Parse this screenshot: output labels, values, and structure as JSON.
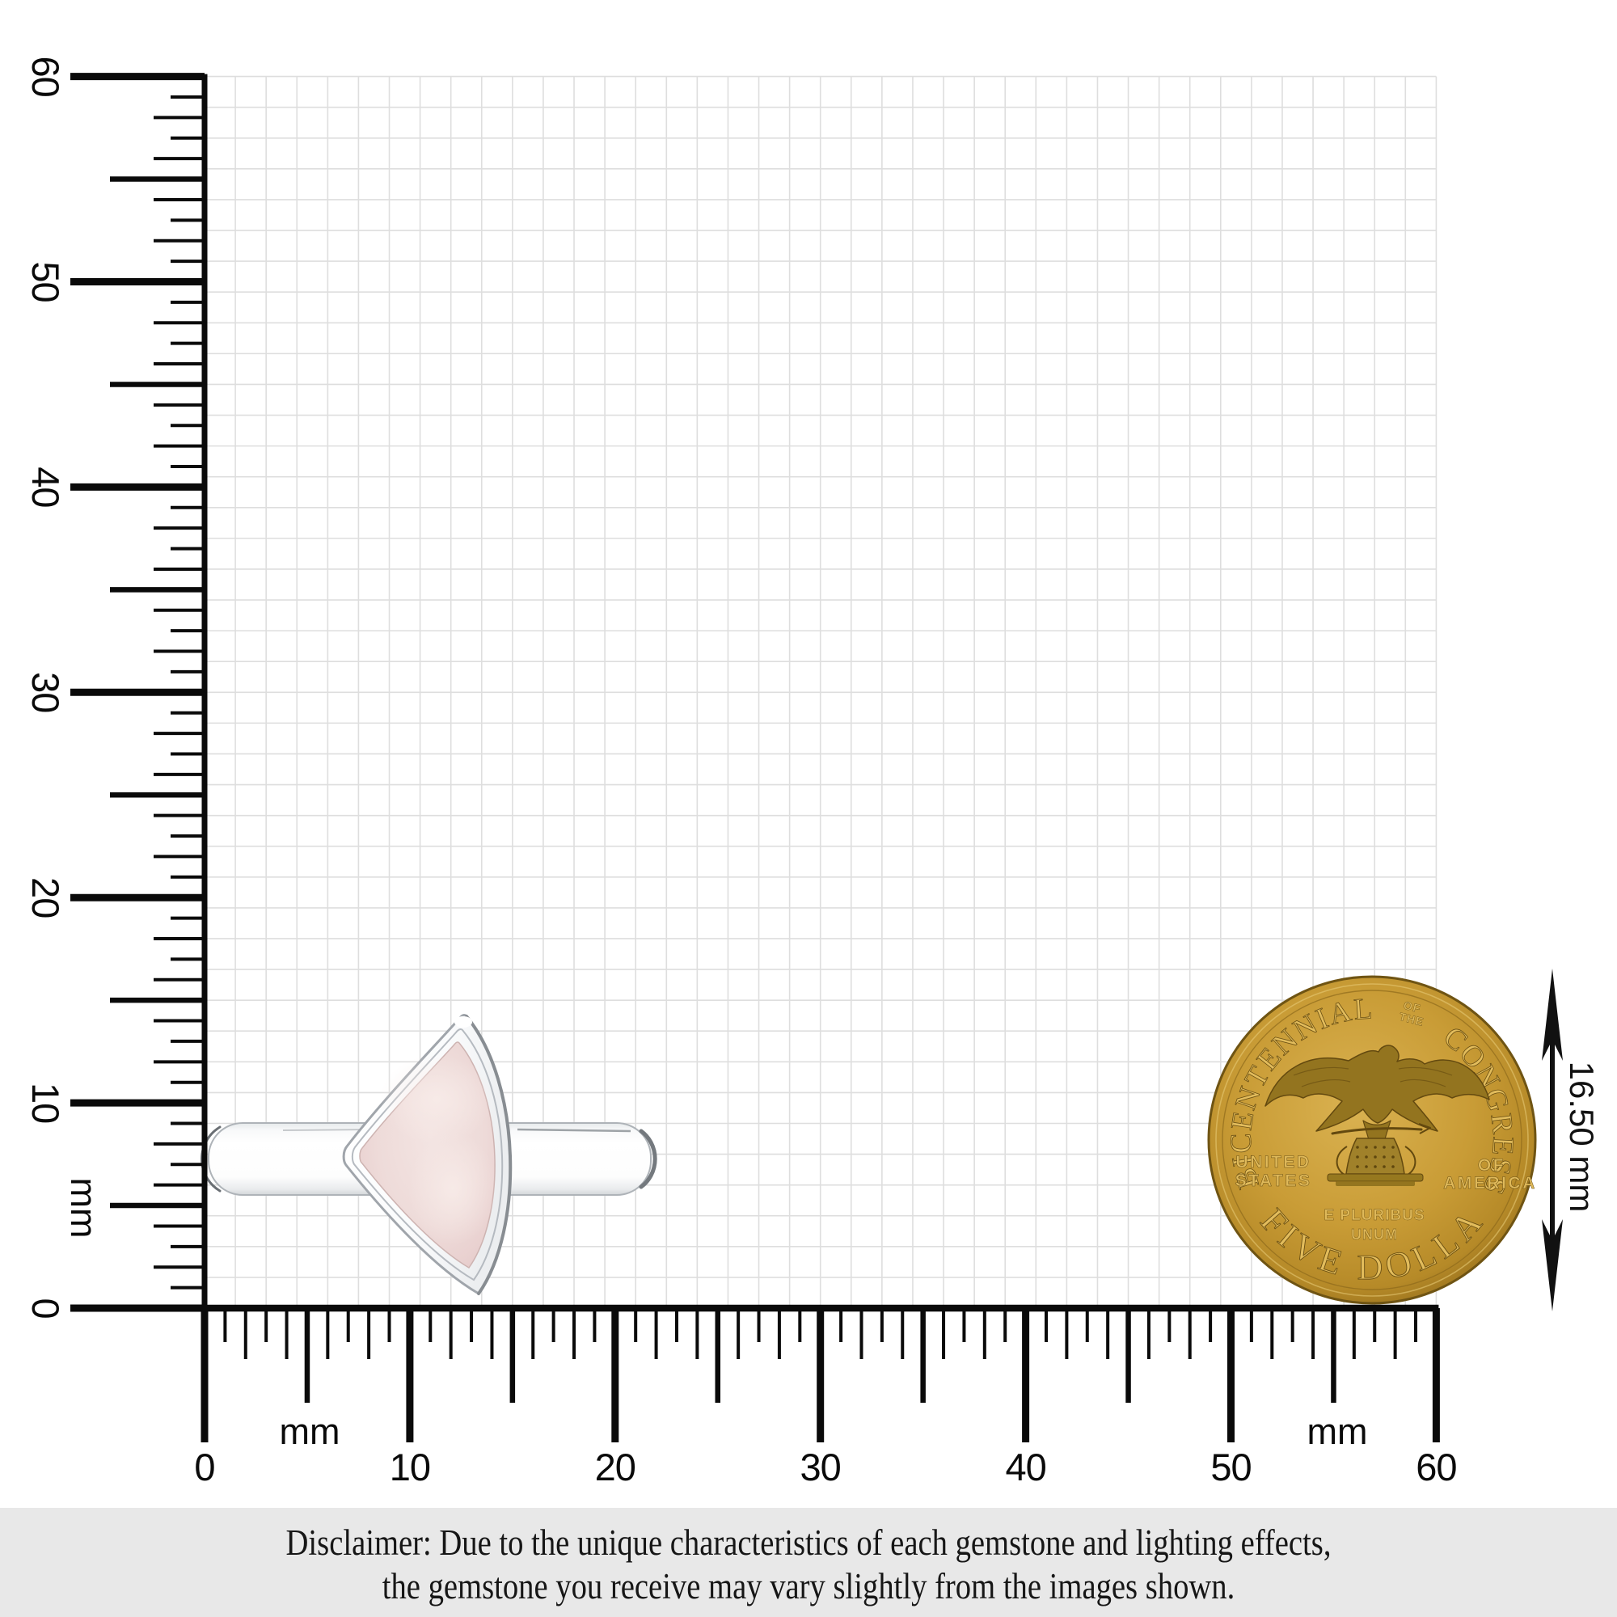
{
  "page": {
    "background": "#ffffff"
  },
  "grid": {
    "cells": 40,
    "line_color": "#dedede"
  },
  "rulers": {
    "unit_label": "mm",
    "min": 0,
    "max": 60,
    "major_step": 10,
    "left_labels": [
      60,
      50,
      40,
      30,
      20,
      10,
      0
    ],
    "bottom_labels": [
      0,
      10,
      20,
      30,
      40,
      50,
      60
    ],
    "tick_color": "#0a0a0a"
  },
  "ring": {
    "stone_color": "#ecd6d4",
    "stone_highlight_color": "#f6e9e6",
    "metal_color": "#fbfbfc",
    "metal_edge_color": "#a0a5ab"
  },
  "coin": {
    "arc_left": "BICENTENNIAL",
    "arc_small_top": [
      "OF",
      "THE"
    ],
    "arc_right": "CONGRESS",
    "left_lines": [
      "UNITED",
      "STATES"
    ],
    "right_lines": [
      "OF",
      "AMERICA"
    ],
    "motto_lines": [
      "E PLURIBUS",
      "UNUM"
    ],
    "bottom_arc": "FIVE DOLLARS",
    "gold_color": "#c89d36"
  },
  "annotation": {
    "coin_diameter": "16.50 mm"
  },
  "disclaimer": {
    "line1": "Disclaimer: Due to the unique characteristics of each gemstone and lighting effects,",
    "line2": "the gemstone you receive may vary slightly from the images shown.",
    "band_color": "#e8e8e8"
  }
}
